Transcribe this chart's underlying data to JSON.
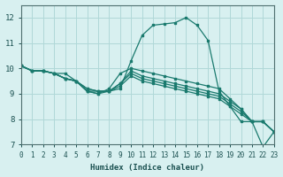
{
  "xlabel": "Humidex (Indice chaleur)",
  "ylabel": "",
  "bg_color": "#d8f0f0",
  "grid_color": "#b0d8d8",
  "line_color": "#1a7a6e",
  "xlim": [
    0,
    23
  ],
  "ylim": [
    7,
    12.5
  ],
  "yticks": [
    7,
    8,
    9,
    10,
    11,
    12
  ],
  "xticks": [
    0,
    1,
    2,
    3,
    4,
    5,
    6,
    7,
    8,
    9,
    10,
    11,
    12,
    13,
    14,
    15,
    16,
    17,
    18,
    19,
    20,
    21,
    22,
    23
  ],
  "lines": [
    [
      10.1,
      9.9,
      9.9,
      9.8,
      9.8,
      9.5,
      9.1,
      9.1,
      9.1,
      9.2,
      10.3,
      11.3,
      11.7,
      11.75,
      11.8,
      12.0,
      11.7,
      11.1,
      9.1,
      8.5,
      7.9,
      7.9,
      6.9,
      7.5
    ],
    [
      10.1,
      9.9,
      9.9,
      9.8,
      9.6,
      9.5,
      9.1,
      9.0,
      9.2,
      9.8,
      10.0,
      9.9,
      9.8,
      9.7,
      9.6,
      9.5,
      9.4,
      9.3,
      9.2,
      8.8,
      8.4,
      7.9,
      7.9,
      7.5
    ],
    [
      10.1,
      9.9,
      9.9,
      9.8,
      9.6,
      9.5,
      9.1,
      9.0,
      9.1,
      9.4,
      9.9,
      9.7,
      9.6,
      9.5,
      9.4,
      9.3,
      9.2,
      9.1,
      9.0,
      8.7,
      8.4,
      7.9,
      7.9,
      7.5
    ],
    [
      10.1,
      9.9,
      9.9,
      9.8,
      9.6,
      9.5,
      9.2,
      9.1,
      9.1,
      9.4,
      9.8,
      9.6,
      9.5,
      9.4,
      9.3,
      9.2,
      9.1,
      9.0,
      8.9,
      8.6,
      8.3,
      7.9,
      7.9,
      7.5
    ],
    [
      10.1,
      9.9,
      9.9,
      9.8,
      9.6,
      9.5,
      9.2,
      9.1,
      9.1,
      9.3,
      9.7,
      9.5,
      9.4,
      9.3,
      9.2,
      9.1,
      9.0,
      8.9,
      8.8,
      8.5,
      8.2,
      7.9,
      7.9,
      7.5
    ]
  ]
}
